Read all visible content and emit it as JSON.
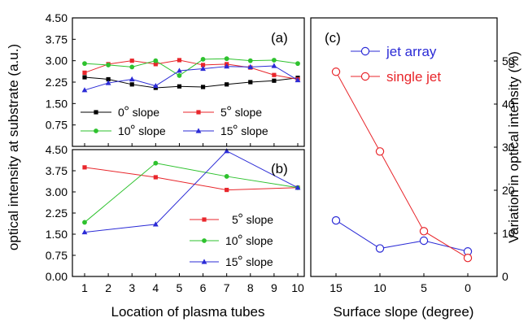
{
  "shared": {
    "xlabel": "Location of plasma tubes",
    "ylabel": "optical intensity at substrate (a.u.)"
  },
  "chart_data": [
    {
      "panel": "(a)",
      "type": "line",
      "x": [
        1,
        2,
        3,
        4,
        5,
        6,
        7,
        8,
        9,
        10
      ],
      "xticks": [
        "1",
        "2",
        "3",
        "4",
        "5",
        "6",
        "7",
        "8",
        "9",
        "10"
      ],
      "ylim": [
        0.0,
        4.5
      ],
      "yticks": [
        "4.50",
        "3.75",
        "3.00",
        "2.25",
        "1.50",
        "0.75"
      ],
      "legend_position": "bottom",
      "series": [
        {
          "name": "0",
          "label_suffix": "slope",
          "color": "#000000",
          "marker": "square",
          "values": [
            2.42,
            2.35,
            2.17,
            2.05,
            2.1,
            2.08,
            2.17,
            2.25,
            2.3,
            2.4
          ]
        },
        {
          "name": "5",
          "label_suffix": "slope",
          "color": "#e8262b",
          "marker": "square",
          "values": [
            2.58,
            2.88,
            3.0,
            2.88,
            3.02,
            2.85,
            2.88,
            2.76,
            2.5,
            2.35
          ]
        },
        {
          "name": "10",
          "label_suffix": "slope",
          "color": "#2ec22e",
          "marker": "circle",
          "values": [
            2.9,
            2.85,
            2.78,
            3.0,
            2.48,
            3.05,
            3.07,
            3.0,
            3.02,
            2.9
          ]
        },
        {
          "name": "15",
          "label_suffix": "slope",
          "color": "#2b2bd6",
          "marker": "triangle",
          "values": [
            1.97,
            2.22,
            2.35,
            2.12,
            2.65,
            2.72,
            2.8,
            2.78,
            2.82,
            2.32
          ]
        }
      ]
    },
    {
      "panel": "(b)",
      "type": "line",
      "x": [
        1,
        4,
        7,
        10
      ],
      "xticks": [
        "1",
        "2",
        "3",
        "4",
        "5",
        "6",
        "7",
        "8",
        "9",
        "10"
      ],
      "ylim": [
        0.0,
        4.5
      ],
      "yticks": [
        "4.50",
        "3.75",
        "3.00",
        "2.25",
        "1.50",
        "0.75",
        "0.00"
      ],
      "legend_position": "bottom-right",
      "series": [
        {
          "name": "5",
          "label_suffix": "slope",
          "color": "#e8262b",
          "marker": "square",
          "values": [
            3.87,
            3.52,
            3.07,
            3.15
          ]
        },
        {
          "name": "10",
          "label_suffix": "slope",
          "color": "#2ec22e",
          "marker": "circle",
          "values": [
            1.92,
            4.02,
            3.55,
            3.15
          ]
        },
        {
          "name": "15",
          "label_suffix": "slope",
          "color": "#2b2bd6",
          "marker": "triangle",
          "values": [
            1.57,
            1.85,
            4.45,
            3.15
          ]
        }
      ]
    },
    {
      "panel": "(c)",
      "type": "line",
      "x": [
        15,
        10,
        5,
        0
      ],
      "xticks": [
        "15",
        "10",
        "5",
        "0"
      ],
      "xlabel": "Surface slope (degree)",
      "ylabel": "Variation in optical intensity (%)",
      "ylim": [
        0,
        60
      ],
      "yticks": [
        "0",
        "10",
        "20",
        "30",
        "40",
        "50"
      ],
      "legend_position": "top",
      "series": [
        {
          "name": "jet array",
          "color": "#2b2bd6",
          "marker": "open-circle",
          "values": [
            13.0,
            6.5,
            8.3,
            5.8
          ]
        },
        {
          "name": "single jet",
          "color": "#e8262b",
          "marker": "open-circle",
          "values": [
            47.5,
            29.0,
            10.5,
            4.3
          ]
        }
      ]
    }
  ]
}
